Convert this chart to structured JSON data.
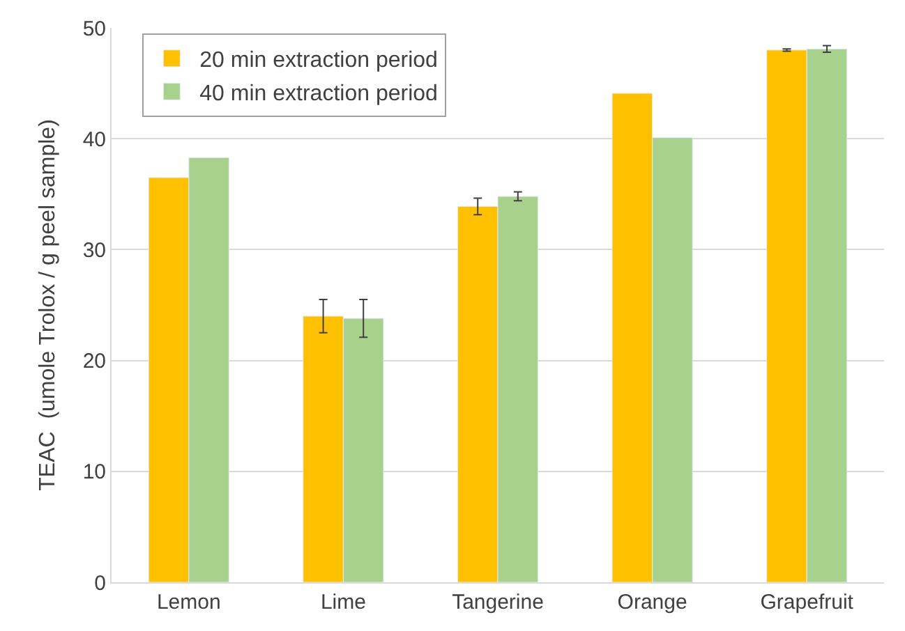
{
  "chart_data": {
    "type": "bar",
    "ylabel": "TEAC  (umole Trolox / g peel sample)",
    "categories": [
      "Lemon",
      "Lime",
      "Tangerine",
      "Orange",
      "Grapefruit"
    ],
    "series": [
      {
        "name": "20 min extraction period",
        "color": "#ffc000",
        "values": [
          36.5,
          24.0,
          33.9,
          44.1,
          48.0
        ],
        "errors": [
          null,
          1.5,
          0.75,
          null,
          0.1
        ]
      },
      {
        "name": "40 min extraction period",
        "color": "#a9d18e",
        "values": [
          38.3,
          23.8,
          34.8,
          40.1,
          48.1
        ],
        "errors": [
          null,
          1.7,
          0.4,
          null,
          0.3
        ]
      }
    ],
    "ylim": [
      0,
      50
    ],
    "yticks": [
      0,
      10,
      20,
      30,
      40,
      50
    ],
    "grid": "y",
    "legend": "top left"
  }
}
